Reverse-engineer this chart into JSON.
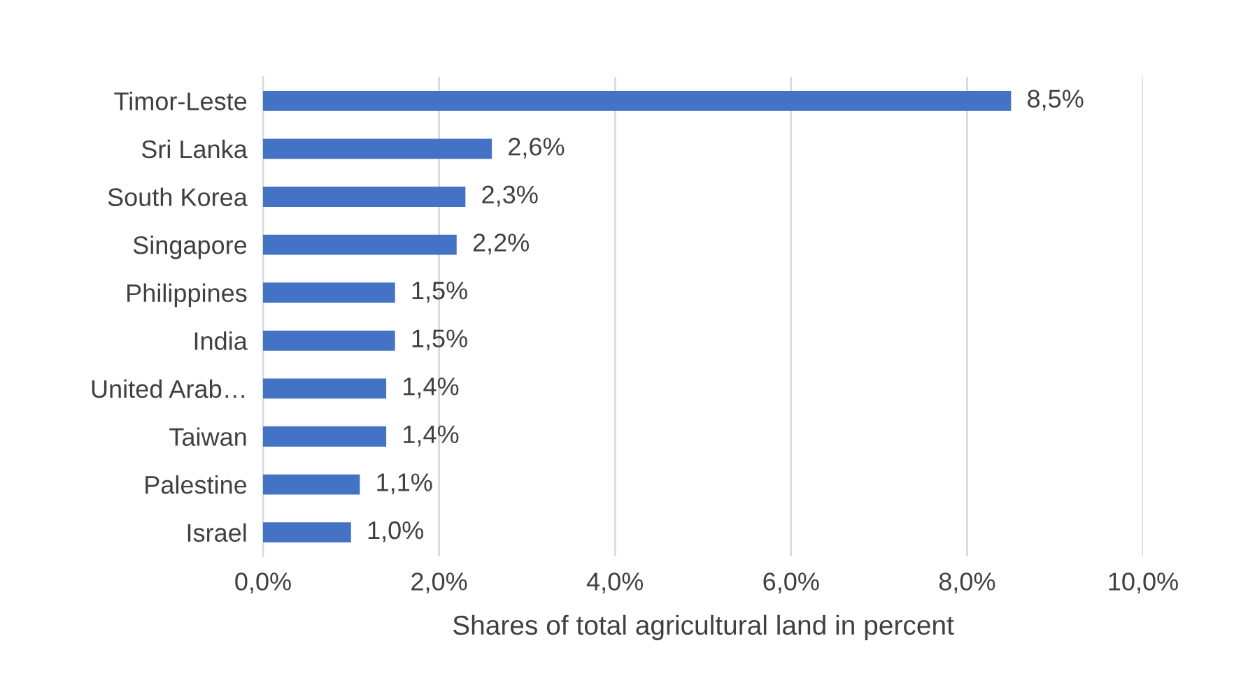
{
  "chart_data": {
    "type": "bar",
    "orientation": "horizontal",
    "xlabel": "Shares of total agricultural land in percent",
    "categories": [
      "Timor-Leste",
      "Sri Lanka",
      "South Korea",
      "Singapore",
      "Philippines",
      "India",
      "United Arab…",
      "Taiwan",
      "Palestine",
      "Israel"
    ],
    "values": [
      8.5,
      2.6,
      2.3,
      2.2,
      1.5,
      1.5,
      1.4,
      1.4,
      1.1,
      1.0
    ],
    "value_labels": [
      "8,5%",
      "2,6%",
      "2,3%",
      "2,2%",
      "1,5%",
      "1,5%",
      "1,4%",
      "1,4%",
      "1,1%",
      "1,0%"
    ],
    "color": "#4472c4",
    "xlim": [
      0,
      10
    ],
    "xticks": [
      {
        "value": 0,
        "label": "0,0%"
      },
      {
        "value": 2,
        "label": "2,0%"
      },
      {
        "value": 4,
        "label": "4,0%"
      },
      {
        "value": 6,
        "label": "6,0%"
      },
      {
        "value": 8,
        "label": "8,0%"
      },
      {
        "value": 10,
        "label": "10,0%"
      }
    ],
    "grid": "x"
  }
}
